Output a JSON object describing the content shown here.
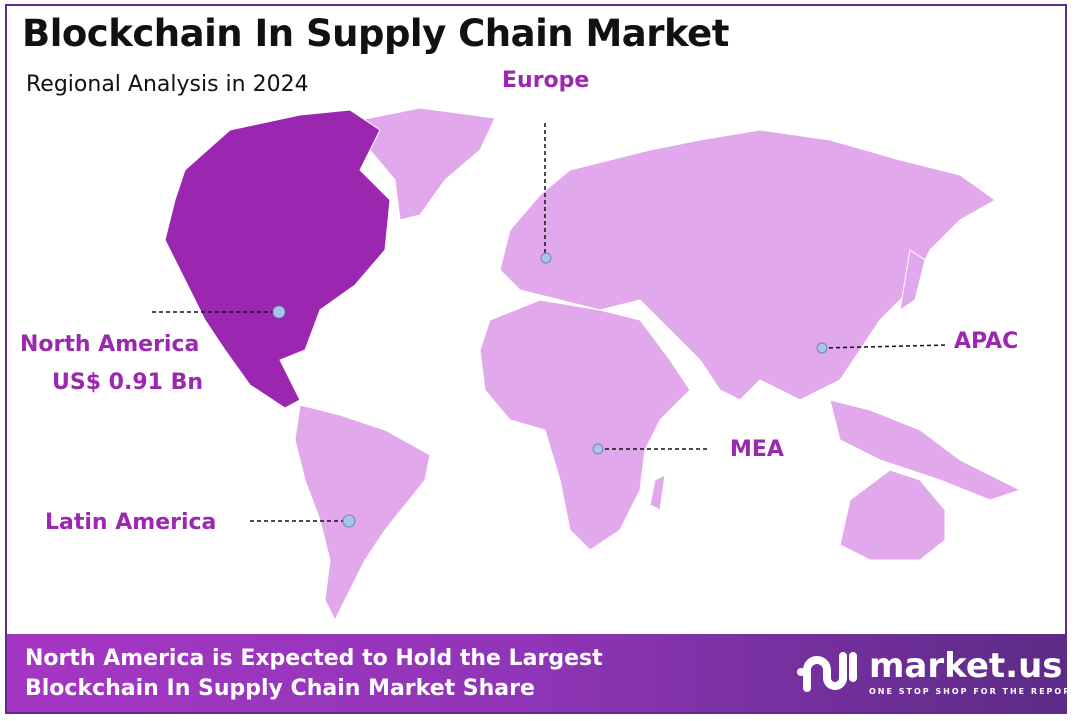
{
  "header": {
    "title": "Blockchain In Supply Chain Market",
    "subtitle": "Regional Analysis in 2024"
  },
  "regions": [
    {
      "name": "North America",
      "value": "US$ 0.91 Bn",
      "highlighted": true
    },
    {
      "name": "Europe"
    },
    {
      "name": "APAC"
    },
    {
      "name": "MEA"
    },
    {
      "name": "Latin America"
    }
  ],
  "colors": {
    "highlight": "#9b27b0",
    "other": "#e2a8ec",
    "label": "#9c27b0",
    "marker": "#a9c4ea"
  },
  "footer": {
    "line1": "North America is Expected to Hold the Largest",
    "line2": "Blockchain In Supply Chain Market Share"
  },
  "logo": {
    "name": "market.us",
    "tagline": "ONE STOP SHOP FOR THE REPORTS"
  }
}
